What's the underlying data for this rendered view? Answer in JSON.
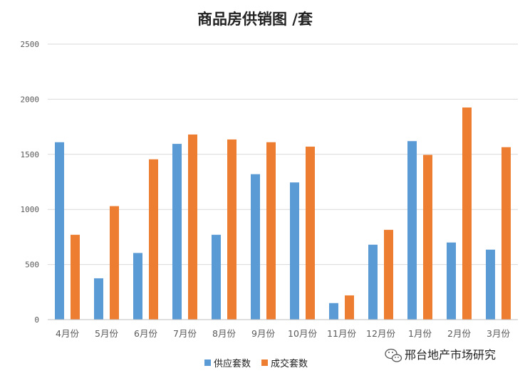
{
  "chart_data": {
    "type": "bar",
    "title": "商品房供销图 /套",
    "categories": [
      "4月份",
      "5月份",
      "6月份",
      "7月份",
      "8月份",
      "9月份",
      "10月份",
      "11月份",
      "12月份",
      "1月份",
      "2月份",
      "3月份"
    ],
    "series": [
      {
        "name": "供应套数",
        "color": "#5b9bd5",
        "values": [
          1610,
          375,
          605,
          1595,
          770,
          1320,
          1245,
          150,
          680,
          1620,
          700,
          635
        ]
      },
      {
        "name": "成交套数",
        "color": "#ed7d31",
        "values": [
          770,
          1030,
          1455,
          1680,
          1635,
          1610,
          1570,
          220,
          815,
          1495,
          1925,
          1565
        ]
      }
    ],
    "yticks": [
      "0",
      "500",
      "1000",
      "1500",
      "2000",
      "2500"
    ],
    "ylim": [
      0,
      2500
    ],
    "grid": true,
    "legend_position": "bottom-center",
    "xlabel": "",
    "ylabel": ""
  },
  "watermark": {
    "icon": "wechat-icon",
    "text": "邢台地产市场研究"
  }
}
